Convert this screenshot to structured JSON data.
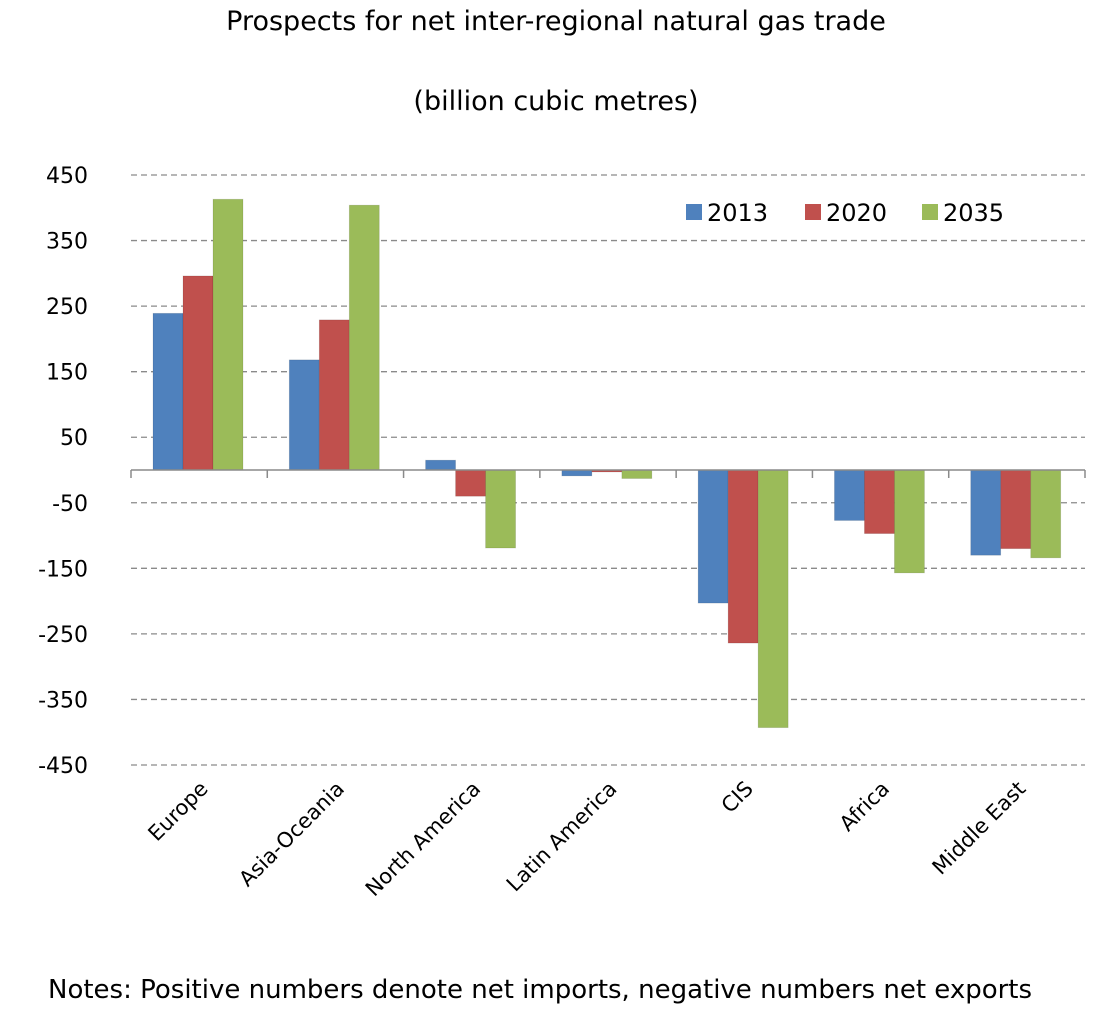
{
  "chart_data": {
    "type": "bar",
    "title": "Prospects for net inter-regional natural gas trade",
    "subtitle": "(billion cubic metres)",
    "xlabel": "",
    "ylabel": "",
    "categories": [
      "Europe",
      "Asia-Oceania",
      "North America",
      "Latin America",
      "CIS",
      "Africa",
      "Middle East"
    ],
    "series": [
      {
        "name": "2013",
        "color": "#4F81BD",
        "values": [
          239,
          168,
          15,
          -9,
          -203,
          -77,
          -130
        ]
      },
      {
        "name": "2020",
        "color": "#C0504D",
        "values": [
          296,
          229,
          -40,
          -3,
          -264,
          -97,
          -120
        ]
      },
      {
        "name": "2035",
        "color": "#9BBB59",
        "values": [
          413,
          404,
          -119,
          -13,
          -393,
          -157,
          -134
        ]
      }
    ],
    "ylim": [
      -450,
      450
    ],
    "yticks": [
      450,
      350,
      250,
      150,
      50,
      -50,
      -150,
      -250,
      -350,
      -450
    ],
    "grid": true,
    "legend": "top-right",
    "notes": "Notes: Positive numbers denote net imports, negative numbers net exports"
  }
}
